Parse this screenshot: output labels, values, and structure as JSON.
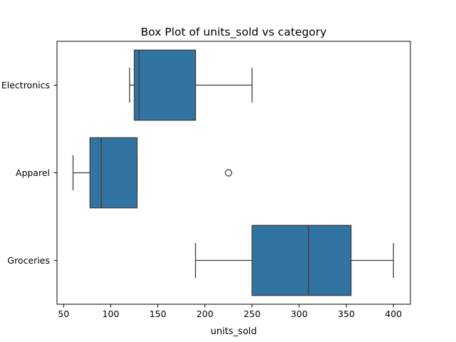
{
  "chart_data": {
    "type": "box",
    "orientation": "horizontal",
    "title": "Box Plot of units_sold vs category",
    "xlabel": "units_sold",
    "ylabel": "",
    "xlim": [
      43,
      418
    ],
    "xticks": [
      50,
      100,
      150,
      200,
      250,
      300,
      350,
      400
    ],
    "xtick_labels": [
      "50",
      "100",
      "150",
      "200",
      "250",
      "300",
      "350",
      "400"
    ],
    "categories": [
      "Electronics",
      "Apparel",
      "Groceries"
    ],
    "boxes": [
      {
        "category": "Electronics",
        "whisker_low": 120,
        "q1": 125,
        "median": 130,
        "q3": 190,
        "whisker_high": 250,
        "outliers": []
      },
      {
        "category": "Apparel",
        "whisker_low": 60,
        "q1": 78,
        "median": 90,
        "q3": 128,
        "whisker_high": 128,
        "outliers": [
          225
        ]
      },
      {
        "category": "Groceries",
        "whisker_low": 190,
        "q1": 250,
        "median": 310,
        "q3": 355,
        "whisker_high": 400,
        "outliers": []
      }
    ],
    "grid": false,
    "box_color": "#3274a1",
    "line_color": "#3d3d3d"
  }
}
